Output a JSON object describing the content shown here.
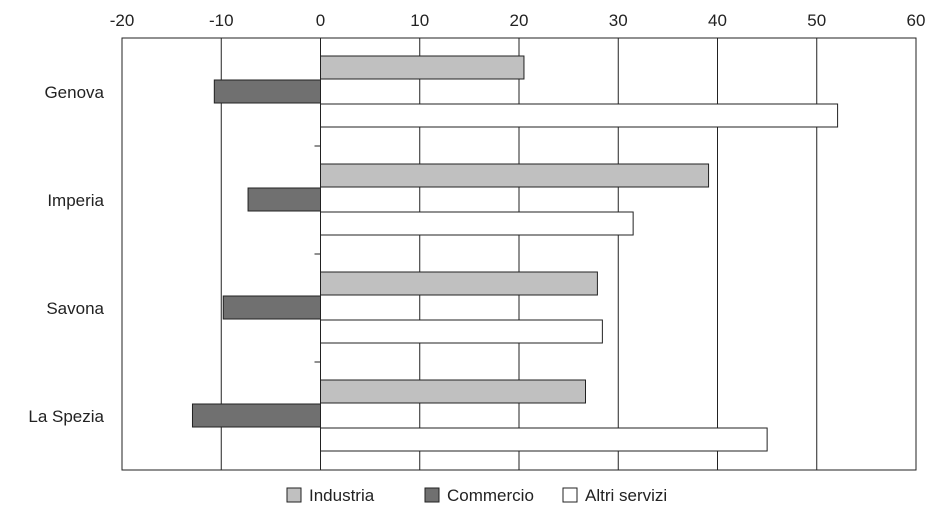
{
  "chart_data": {
    "type": "bar",
    "orientation": "horizontal",
    "categories": [
      "Genova",
      "Imperia",
      "Savona",
      "La Spezia"
    ],
    "series": [
      {
        "name": "Industria",
        "values": [
          20.5,
          39.1,
          27.9,
          26.7
        ],
        "color": "#c0c0c0"
      },
      {
        "name": "Commercio",
        "values": [
          -10.7,
          -7.3,
          -9.8,
          -12.9
        ],
        "color": "#707070"
      },
      {
        "name": "Altri servizi",
        "values": [
          52.1,
          31.5,
          28.4,
          45.0
        ],
        "color": "#ffffff"
      }
    ],
    "xlim": [
      -20,
      60
    ],
    "xticks": [
      "-20",
      "-10",
      "0",
      "10",
      "20",
      "30",
      "40",
      "50",
      "60"
    ],
    "x_axis_position": "top",
    "grid": "vertical",
    "legend_position": "bottom"
  }
}
